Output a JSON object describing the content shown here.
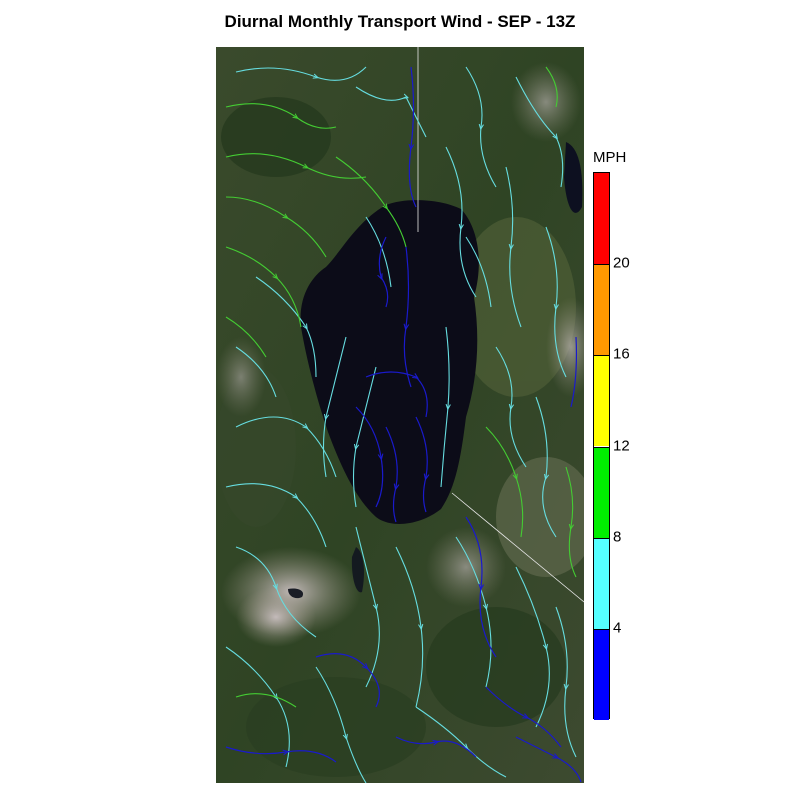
{
  "title": "Diurnal Monthly Transport Wind - SEP - 13Z",
  "legend": {
    "unit": "MPH",
    "tick_labels": [
      "4",
      "8",
      "12",
      "16",
      "20"
    ],
    "bins": [
      {
        "min": 0,
        "max": 4,
        "color": "#0000ff"
      },
      {
        "min": 4,
        "max": 8,
        "color": "#55ffff"
      },
      {
        "min": 8,
        "max": 12,
        "color": "#00ee00"
      },
      {
        "min": 12,
        "max": 16,
        "color": "#ffff00"
      },
      {
        "min": 16,
        "max": 20,
        "color": "#ff9900"
      },
      {
        "min": 20,
        "max": 24,
        "color": "#ff0000"
      }
    ]
  },
  "colors": {
    "terrain_dark": "#2f4424",
    "terrain_mid": "#4a5a36",
    "terrain_light": "#9a9383",
    "lake": "#0c0c18",
    "streamline_light": "#66dde0",
    "streamline_green": "#44cc33",
    "streamline_blue": "#1a1acc"
  }
}
